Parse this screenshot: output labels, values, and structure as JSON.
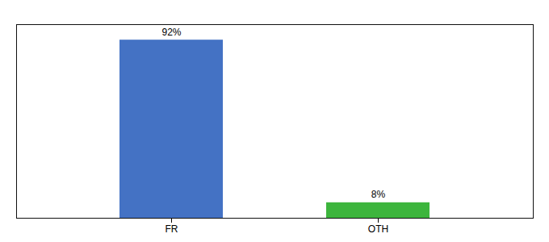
{
  "chart_data": {
    "type": "bar",
    "categories": [
      "FR",
      "OTH"
    ],
    "values": [
      92,
      8
    ],
    "value_labels": [
      "92%",
      "8%"
    ],
    "colors": [
      "#4472c4",
      "#3db53d"
    ],
    "ylim": [
      0,
      100
    ],
    "data_labels": true,
    "tick_labels": "x",
    "grid": false
  }
}
